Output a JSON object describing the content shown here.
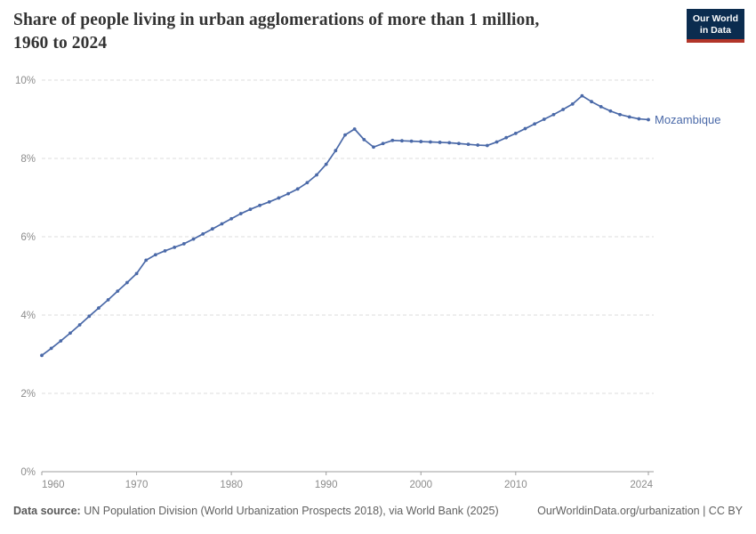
{
  "header": {
    "title_line1": "Share of people living in urban agglomerations of more than 1 million,",
    "title_line2": "1960 to 2024",
    "logo_line1": "Our World",
    "logo_line2": "in Data"
  },
  "chart_data": {
    "type": "line",
    "title": "Share of people living in urban agglomerations of more than 1 million, 1960 to 2024",
    "xlabel": "",
    "ylabel": "",
    "grid": "horizontal-dashed",
    "legend_position": "end-of-line",
    "xlim": [
      1960,
      2024
    ],
    "ylim": [
      0,
      10
    ],
    "x_ticks": [
      1960,
      1970,
      1980,
      1990,
      2000,
      2010,
      2024
    ],
    "y_ticks": [
      0,
      2,
      4,
      6,
      8,
      10
    ],
    "y_tick_suffix": "%",
    "x": [
      1960,
      1961,
      1962,
      1963,
      1964,
      1965,
      1966,
      1967,
      1968,
      1969,
      1970,
      1971,
      1972,
      1973,
      1974,
      1975,
      1976,
      1977,
      1978,
      1979,
      1980,
      1981,
      1982,
      1983,
      1984,
      1985,
      1986,
      1987,
      1988,
      1989,
      1990,
      1991,
      1992,
      1993,
      1994,
      1995,
      1996,
      1997,
      1998,
      1999,
      2000,
      2001,
      2002,
      2003,
      2004,
      2005,
      2006,
      2007,
      2008,
      2009,
      2010,
      2011,
      2012,
      2013,
      2014,
      2015,
      2016,
      2017,
      2018,
      2019,
      2020,
      2021,
      2022,
      2023,
      2024
    ],
    "series": [
      {
        "name": "Mozambique",
        "color": "#4a69a8",
        "values": [
          2.97,
          3.15,
          3.34,
          3.54,
          3.75,
          3.97,
          4.18,
          4.39,
          4.61,
          4.83,
          5.06,
          5.4,
          5.54,
          5.64,
          5.73,
          5.82,
          5.94,
          6.07,
          6.2,
          6.33,
          6.46,
          6.59,
          6.7,
          6.8,
          6.89,
          6.99,
          7.1,
          7.22,
          7.38,
          7.58,
          7.85,
          8.2,
          8.6,
          8.75,
          8.48,
          8.29,
          8.38,
          8.46,
          8.45,
          8.44,
          8.43,
          8.42,
          8.41,
          8.4,
          8.38,
          8.36,
          8.34,
          8.33,
          8.42,
          8.53,
          8.64,
          8.76,
          8.88,
          9.0,
          9.12,
          9.25,
          9.39,
          9.6,
          9.45,
          9.32,
          9.21,
          9.12,
          9.06,
          9.01,
          8.99
        ]
      }
    ]
  },
  "colors": {
    "line": "#4a69a8",
    "grid": "#dcdcdc",
    "axis": "#9c9c9c",
    "tick_label": "#8c8c8c",
    "logo_bg": "#0b2c4f",
    "logo_stripe": "#b23529"
  },
  "footer": {
    "source_label": "Data source:",
    "source_text": " UN Population Division (World Urbanization Prospects 2018), via World Bank (2025)",
    "attribution": "OurWorldinData.org/urbanization | CC BY"
  }
}
